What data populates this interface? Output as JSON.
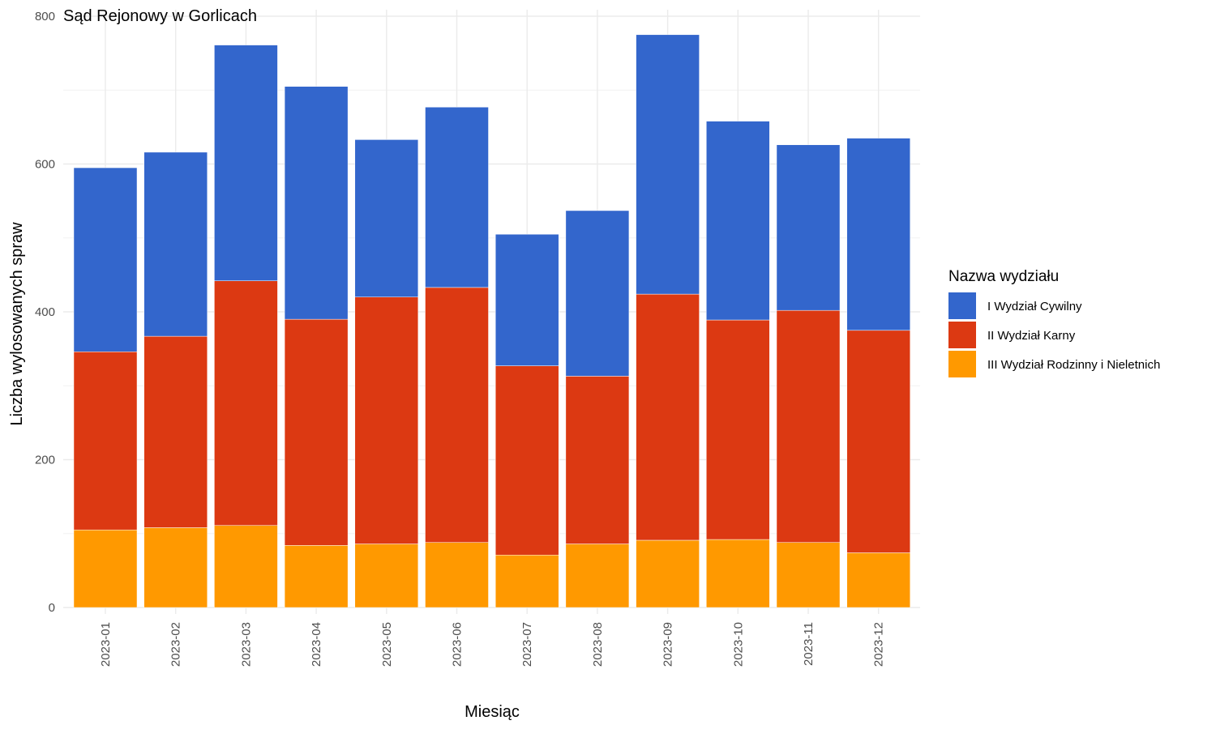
{
  "chart_data": {
    "type": "bar",
    "stacked": true,
    "title": "Sąd Rejonowy w Gorlicach",
    "xlabel": "Miesiąc",
    "ylabel": "Liczba wylosowanych spraw",
    "ylim": [
      0,
      800
    ],
    "yticks": [
      0,
      200,
      400,
      600,
      800
    ],
    "grid": true,
    "legend": {
      "title": "Nazwa wydziału",
      "position": "right"
    },
    "categories": [
      "2023-01",
      "2023-02",
      "2023-03",
      "2023-04",
      "2023-05",
      "2023-06",
      "2023-07",
      "2023-08",
      "2023-09",
      "2023-10",
      "2023-11",
      "2023-12"
    ],
    "series": [
      {
        "name": "III Wydział Rodzinny i Nieletnich",
        "color": "#FF9900",
        "values": [
          105,
          108,
          111,
          84,
          86,
          88,
          71,
          86,
          91,
          92,
          88,
          74
        ]
      },
      {
        "name": "II Wydział Karny",
        "color": "#DC3912",
        "values": [
          241,
          259,
          331,
          306,
          334,
          345,
          256,
          227,
          333,
          297,
          314,
          301
        ]
      },
      {
        "name": "I Wydział Cywilny",
        "color": "#3366CC",
        "values": [
          249,
          249,
          319,
          315,
          213,
          244,
          178,
          224,
          351,
          269,
          224,
          260
        ]
      }
    ]
  }
}
